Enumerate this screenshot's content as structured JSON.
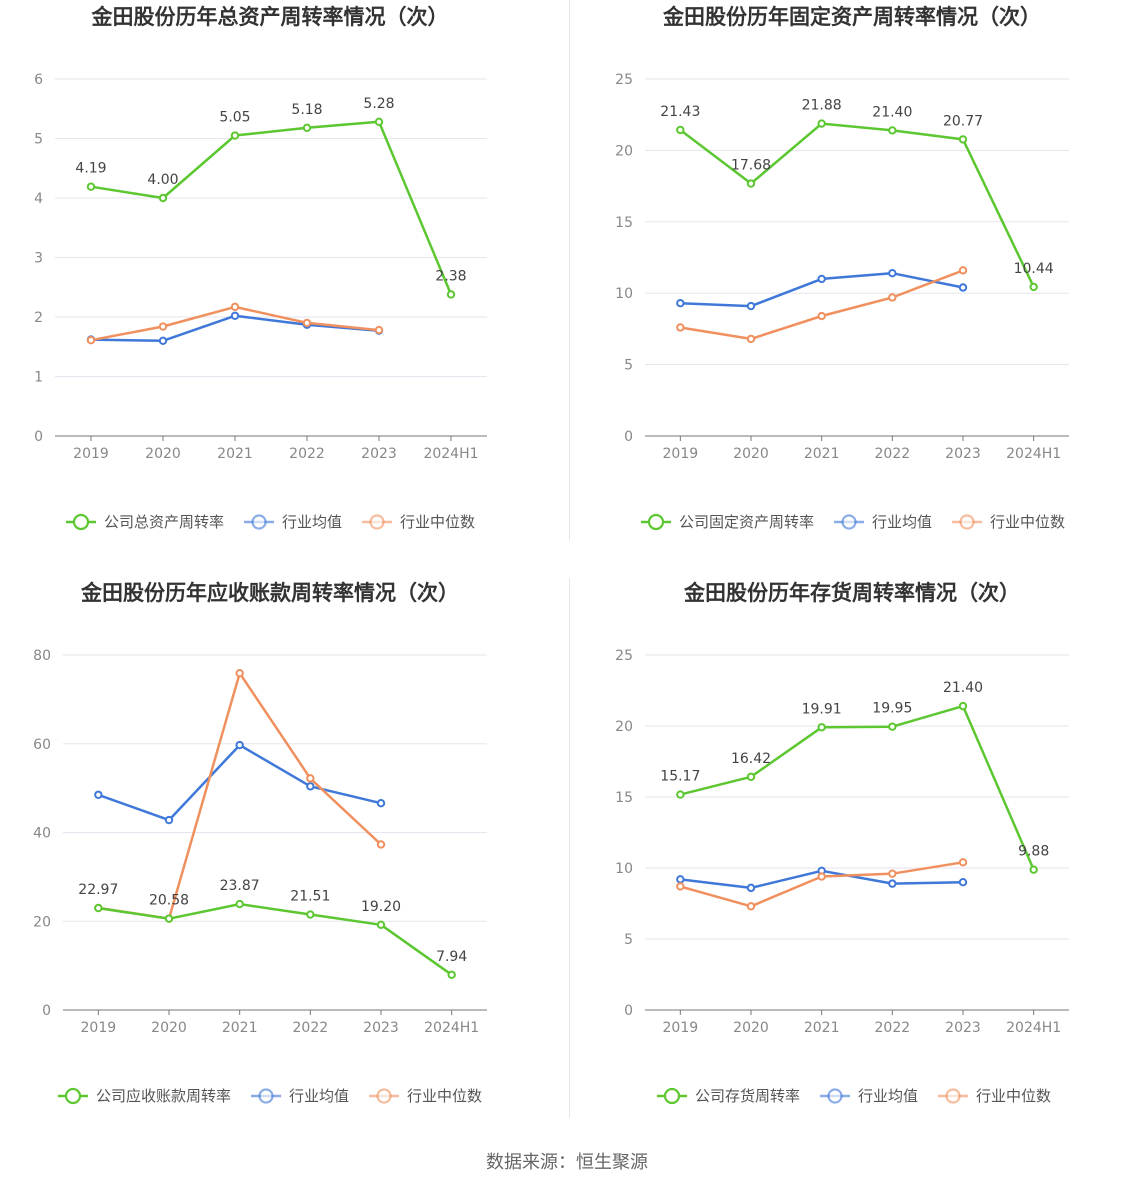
{
  "colors": {
    "company": "#5cc731",
    "mean": "#3f78d8",
    "median": "#f0905e",
    "grid": "#e5e5ee",
    "axis": "#777777"
  },
  "footer": {
    "source": "数据来源：恒生聚源"
  },
  "chart_data": [
    {
      "type": "line",
      "title": "金田股份历年总资产周转率情况（次）",
      "categories": [
        "2019",
        "2020",
        "2021",
        "2022",
        "2023",
        "2024H1"
      ],
      "ylim": [
        0,
        6
      ],
      "yticks": [
        0,
        1,
        2,
        3,
        4,
        5,
        6
      ],
      "series": [
        {
          "name": "公司总资产周转率",
          "key": "company",
          "values": [
            4.19,
            4.0,
            5.05,
            5.18,
            5.28,
            2.38
          ],
          "labels": [
            "4.19",
            "4.00",
            "5.05",
            "5.18",
            "5.28",
            "2.38"
          ]
        },
        {
          "name": "行业均值",
          "key": "mean",
          "values": [
            1.62,
            1.6,
            2.02,
            1.87,
            1.77,
            null
          ]
        },
        {
          "name": "行业中位数",
          "key": "median",
          "values": [
            1.61,
            1.84,
            2.17,
            1.9,
            1.78,
            null
          ]
        }
      ]
    },
    {
      "type": "line",
      "title": "金田股份历年固定资产周转率情况（次）",
      "categories": [
        "2019",
        "2020",
        "2021",
        "2022",
        "2023",
        "2024H1"
      ],
      "ylim": [
        0,
        25
      ],
      "yticks": [
        0,
        5,
        10,
        15,
        20,
        25
      ],
      "series": [
        {
          "name": "公司固定资产周转率",
          "key": "company",
          "values": [
            21.43,
            17.68,
            21.88,
            21.4,
            20.77,
            10.44
          ],
          "labels": [
            "21.43",
            "17.68",
            "21.88",
            "21.40",
            "20.77",
            "10.44"
          ]
        },
        {
          "name": "行业均值",
          "key": "mean",
          "values": [
            9.3,
            9.1,
            11.0,
            11.4,
            10.4,
            null
          ]
        },
        {
          "name": "行业中位数",
          "key": "median",
          "values": [
            7.6,
            6.8,
            8.4,
            9.7,
            11.6,
            null
          ]
        }
      ]
    },
    {
      "type": "line",
      "title": "金田股份历年应收账款周转率情况（次）",
      "categories": [
        "2019",
        "2020",
        "2021",
        "2022",
        "2023",
        "2024H1"
      ],
      "ylim": [
        0,
        80
      ],
      "yticks": [
        0,
        20,
        40,
        60,
        80
      ],
      "series": [
        {
          "name": "公司应收账款周转率",
          "key": "company",
          "values": [
            22.97,
            20.58,
            23.87,
            21.51,
            19.2,
            7.94
          ],
          "labels": [
            "22.97",
            "20.58",
            "23.87",
            "21.51",
            "19.20",
            "7.94"
          ]
        },
        {
          "name": "行业均值",
          "key": "mean",
          "values": [
            48.5,
            42.8,
            59.7,
            50.4,
            46.6,
            null
          ]
        },
        {
          "name": "行业中位数",
          "key": "median",
          "values": [
            23.0,
            20.6,
            75.9,
            52.2,
            37.3,
            null
          ]
        }
      ]
    },
    {
      "type": "line",
      "title": "金田股份历年存货周转率情况（次）",
      "categories": [
        "2019",
        "2020",
        "2021",
        "2022",
        "2023",
        "2024H1"
      ],
      "ylim": [
        0,
        25
      ],
      "yticks": [
        0,
        5,
        10,
        15,
        20,
        25
      ],
      "series": [
        {
          "name": "公司存货周转率",
          "key": "company",
          "values": [
            15.17,
            16.42,
            19.91,
            19.95,
            21.4,
            9.88
          ],
          "labels": [
            "15.17",
            "16.42",
            "19.91",
            "19.95",
            "21.40",
            "9.88"
          ]
        },
        {
          "name": "行业均值",
          "key": "mean",
          "values": [
            9.2,
            8.6,
            9.8,
            8.9,
            9.0,
            null
          ]
        },
        {
          "name": "行业中位数",
          "key": "median",
          "values": [
            8.7,
            7.3,
            9.4,
            9.6,
            10.4,
            null
          ]
        }
      ]
    }
  ]
}
